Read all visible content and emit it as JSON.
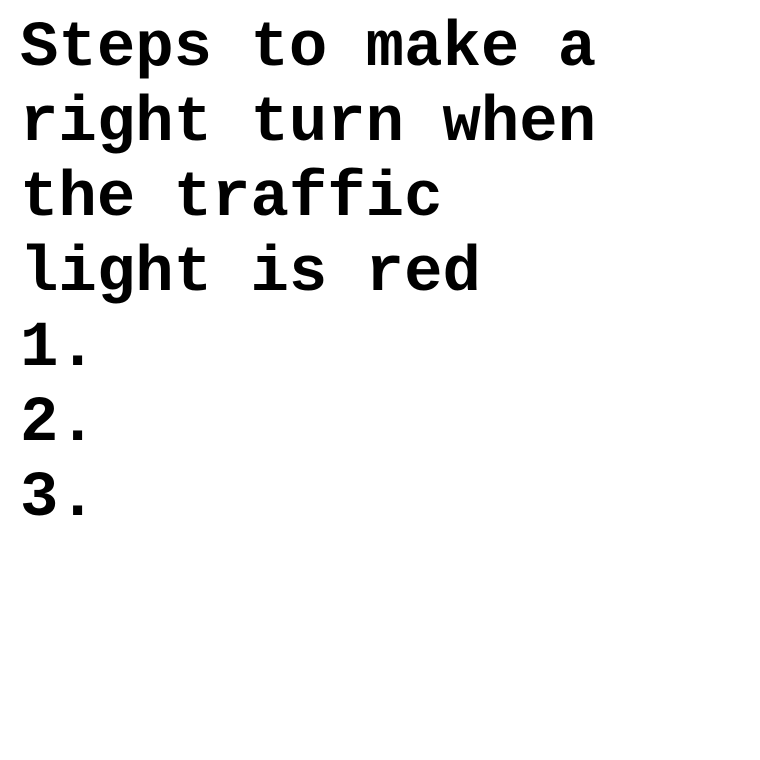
{
  "document": {
    "title_lines": [
      "Steps to make a",
      "right turn when",
      "the traffic",
      "light is red"
    ],
    "steps": [
      "1.",
      "2.",
      "3."
    ]
  }
}
